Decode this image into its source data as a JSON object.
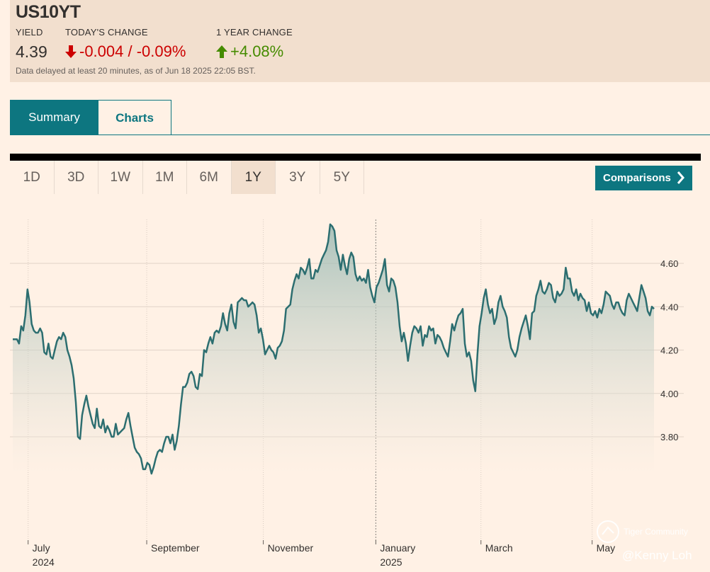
{
  "header": {
    "symbol": "US10YT",
    "yield_label": "YIELD",
    "change_label": "TODAY'S CHANGE",
    "year_change_label": "1 YEAR CHANGE",
    "yield_value": "4.39",
    "change_value": "-0.004 / -0.09%",
    "year_change_value": "+4.08%",
    "delayed_note": "Data delayed at least 20 minutes, as of Jun 18 2025 22:05 BST."
  },
  "tabs": [
    {
      "label": "Summary",
      "active": true
    },
    {
      "label": "Charts",
      "active": false
    }
  ],
  "ranges": [
    {
      "label": "1D",
      "active": false
    },
    {
      "label": "3D",
      "active": false
    },
    {
      "label": "1W",
      "active": false
    },
    {
      "label": "1M",
      "active": false
    },
    {
      "label": "6M",
      "active": false
    },
    {
      "label": "1Y",
      "active": true
    },
    {
      "label": "3Y",
      "active": false
    },
    {
      "label": "5Y",
      "active": false
    }
  ],
  "comparisons_label": "Comparisons",
  "watermark": {
    "title": "Tiger Community",
    "author": "@Kenny Loh"
  },
  "colors": {
    "accent": "#0d7680",
    "line": "#2c6e70",
    "down": "#cc0000",
    "up": "#458b00",
    "background": "#fff1e5"
  },
  "chart_data": {
    "type": "area",
    "ylim": [
      3.52,
      4.78
    ],
    "yticks": [
      "4.60",
      "4.40",
      "4.20",
      "4.00",
      "3.80"
    ],
    "ytick_values": [
      4.6,
      4.4,
      4.2,
      4.0,
      3.8
    ],
    "grid": true,
    "x_axis": [
      {
        "label": "July",
        "year": "2024"
      },
      {
        "label": "September",
        "year": ""
      },
      {
        "label": "November",
        "year": ""
      },
      {
        "label": "January",
        "year": "2025"
      },
      {
        "label": "March",
        "year": ""
      },
      {
        "label": "May",
        "year": ""
      }
    ],
    "y": [
      4.25,
      4.25,
      4.25,
      4.23,
      4.31,
      4.29,
      4.36,
      4.48,
      4.42,
      4.32,
      4.29,
      4.28,
      4.28,
      4.3,
      4.28,
      4.19,
      4.18,
      4.23,
      4.17,
      4.16,
      4.2,
      4.24,
      4.26,
      4.25,
      4.28,
      4.26,
      4.2,
      4.17,
      4.13,
      4.07,
      3.96,
      3.8,
      3.79,
      3.9,
      3.95,
      3.99,
      3.94,
      3.9,
      3.86,
      3.84,
      3.93,
      3.85,
      3.84,
      3.88,
      3.82,
      3.85,
      3.83,
      3.8,
      3.8,
      3.86,
      3.81,
      3.82,
      3.83,
      3.84,
      3.88,
      3.91,
      3.85,
      3.8,
      3.75,
      3.73,
      3.72,
      3.7,
      3.65,
      3.65,
      3.68,
      3.67,
      3.63,
      3.66,
      3.7,
      3.73,
      3.74,
      3.73,
      3.77,
      3.8,
      3.8,
      3.77,
      3.81,
      3.74,
      3.78,
      3.85,
      3.95,
      4.03,
      4.03,
      4.05,
      4.09,
      4.1,
      4.08,
      4.03,
      4.02,
      4.09,
      4.08,
      4.2,
      4.19,
      4.23,
      4.26,
      4.23,
      4.28,
      4.29,
      4.28,
      4.31,
      4.37,
      4.32,
      4.29,
      4.37,
      4.41,
      4.33,
      4.3,
      4.42,
      4.43,
      4.44,
      4.43,
      4.43,
      4.4,
      4.41,
      4.42,
      4.41,
      4.36,
      4.28,
      4.3,
      4.25,
      4.18,
      4.2,
      4.22,
      4.2,
      4.19,
      4.16,
      4.21,
      4.22,
      4.24,
      4.29,
      4.39,
      4.4,
      4.41,
      4.48,
      4.52,
      4.55,
      4.53,
      4.58,
      4.57,
      4.55,
      4.58,
      4.62,
      4.53,
      4.53,
      4.57,
      4.56,
      4.59,
      4.62,
      4.64,
      4.66,
      4.7,
      4.78,
      4.77,
      4.75,
      4.66,
      4.63,
      4.57,
      4.64,
      4.59,
      4.55,
      4.62,
      4.65,
      4.63,
      4.55,
      4.52,
      4.54,
      4.52,
      4.53,
      4.51,
      4.57,
      4.49,
      4.45,
      4.42,
      4.49,
      4.51,
      4.54,
      4.57,
      4.62,
      4.5,
      4.47,
      4.53,
      4.52,
      4.49,
      4.42,
      4.31,
      4.24,
      4.28,
      4.23,
      4.15,
      4.22,
      4.28,
      4.31,
      4.3,
      4.28,
      4.31,
      4.22,
      4.27,
      4.26,
      4.31,
      4.29,
      4.3,
      4.23,
      4.27,
      4.26,
      4.24,
      4.21,
      4.19,
      4.17,
      4.24,
      4.32,
      4.29,
      4.33,
      4.36,
      4.37,
      4.39,
      4.23,
      4.17,
      4.19,
      4.15,
      4.06,
      4.01,
      4.18,
      4.31,
      4.37,
      4.44,
      4.48,
      4.41,
      4.37,
      4.39,
      4.32,
      4.35,
      4.42,
      4.45,
      4.4,
      4.38,
      4.35,
      4.26,
      4.21,
      4.19,
      4.17,
      4.2,
      4.26,
      4.3,
      4.33,
      4.36,
      4.31,
      4.25,
      4.37,
      4.38,
      4.45,
      4.48,
      4.52,
      4.47,
      4.46,
      4.48,
      4.51,
      4.5,
      4.44,
      4.42,
      4.47,
      4.45,
      4.46,
      4.48,
      4.58,
      4.53,
      4.53,
      4.47,
      4.45,
      4.48,
      4.43,
      4.46,
      4.44,
      4.43,
      4.38,
      4.42,
      4.37,
      4.36,
      4.38,
      4.35,
      4.39,
      4.37,
      4.41,
      4.47,
      4.46,
      4.45,
      4.41,
      4.39,
      4.42,
      4.42,
      4.39,
      4.37,
      4.36,
      4.43,
      4.46,
      4.44,
      4.42,
      4.4,
      4.38,
      4.44,
      4.5,
      4.47,
      4.44,
      4.38,
      4.36,
      4.4,
      4.39
    ],
    "dashed_marker": "January"
  }
}
